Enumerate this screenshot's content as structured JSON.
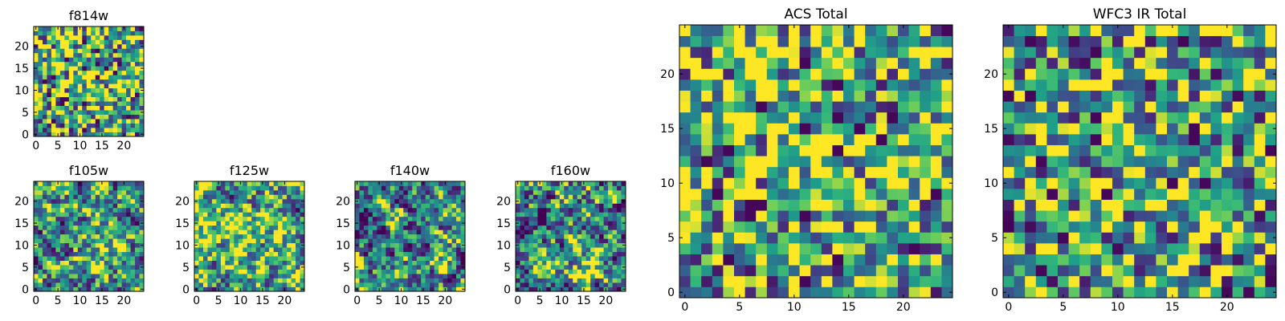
{
  "colormap": {
    "name": "viridis",
    "low": "#440154",
    "mid": "#21918c",
    "high": "#fde725"
  },
  "chart_data": [
    {
      "type": "heatmap",
      "title": "f814w",
      "grid": [
        25,
        25
      ],
      "xticks": [
        "0",
        "5",
        "10",
        "15",
        "20"
      ],
      "yticks": [
        "0",
        "5",
        "10",
        "15",
        "20"
      ],
      "xlim": [
        -0.5,
        24.5
      ],
      "ylim": [
        -0.5,
        24.5
      ],
      "seed": 11,
      "smooth": 0,
      "bias": 0.15,
      "blob": [
        13,
        12,
        4,
        0.15
      ]
    },
    {
      "type": "heatmap",
      "title": "f105w",
      "grid": [
        25,
        25
      ],
      "xticks": [
        "0",
        "5",
        "10",
        "15",
        "20"
      ],
      "yticks": [
        "0",
        "5",
        "10",
        "15",
        "20"
      ],
      "xlim": [
        -0.5,
        24.5
      ],
      "ylim": [
        -0.5,
        24.5
      ],
      "seed": 23,
      "smooth": 1,
      "bias": 0.05,
      "blob": [
        14,
        10,
        5,
        0.2
      ]
    },
    {
      "type": "heatmap",
      "title": "f125w",
      "grid": [
        25,
        25
      ],
      "xticks": [
        "0",
        "5",
        "10",
        "15",
        "20"
      ],
      "yticks": [
        "0",
        "5",
        "10",
        "15",
        "20"
      ],
      "xlim": [
        -0.5,
        24.5
      ],
      "ylim": [
        -0.5,
        24.5
      ],
      "seed": 37,
      "smooth": 1,
      "bias": 0.12,
      "blob": [
        11,
        12,
        6,
        0.2
      ]
    },
    {
      "type": "heatmap",
      "title": "f140w",
      "grid": [
        25,
        25
      ],
      "xticks": [
        "0",
        "5",
        "10",
        "15",
        "20"
      ],
      "yticks": [
        "0",
        "5",
        "10",
        "15",
        "20"
      ],
      "xlim": [
        -0.5,
        24.5
      ],
      "ylim": [
        -0.5,
        24.5
      ],
      "seed": 51,
      "smooth": 1,
      "bias": 0.0,
      "blob": [
        15,
        3,
        4,
        0.15
      ]
    },
    {
      "type": "heatmap",
      "title": "f160w",
      "grid": [
        25,
        25
      ],
      "xticks": [
        "0",
        "5",
        "10",
        "15",
        "20"
      ],
      "yticks": [
        "0",
        "5",
        "10",
        "15",
        "20"
      ],
      "xlim": [
        -0.5,
        24.5
      ],
      "ylim": [
        -0.5,
        24.5
      ],
      "seed": 67,
      "smooth": 1,
      "bias": 0.02,
      "blob": [
        15,
        4,
        4,
        0.25
      ]
    },
    {
      "type": "heatmap",
      "title": "ACS Total",
      "grid": [
        25,
        25
      ],
      "xticks": [
        "0",
        "5",
        "10",
        "15",
        "20"
      ],
      "yticks": [
        "0",
        "5",
        "10",
        "15",
        "20"
      ],
      "xlim": [
        -0.5,
        24.5
      ],
      "ylim": [
        -0.5,
        24.5
      ],
      "seed": 11,
      "smooth": 0,
      "bias": 0.15,
      "blob": [
        13,
        12,
        4,
        0.15
      ]
    },
    {
      "type": "heatmap",
      "title": "WFC3 IR Total",
      "grid": [
        25,
        25
      ],
      "xticks": [
        "0",
        "5",
        "10",
        "15",
        "20"
      ],
      "yticks": [
        "0",
        "5",
        "10",
        "15",
        "20"
      ],
      "xlim": [
        -0.5,
        24.5
      ],
      "ylim": [
        -0.5,
        24.5
      ],
      "seed": 89,
      "smooth": 0,
      "bias": 0.08,
      "blob": [
        14,
        12,
        6,
        0.1
      ]
    }
  ]
}
